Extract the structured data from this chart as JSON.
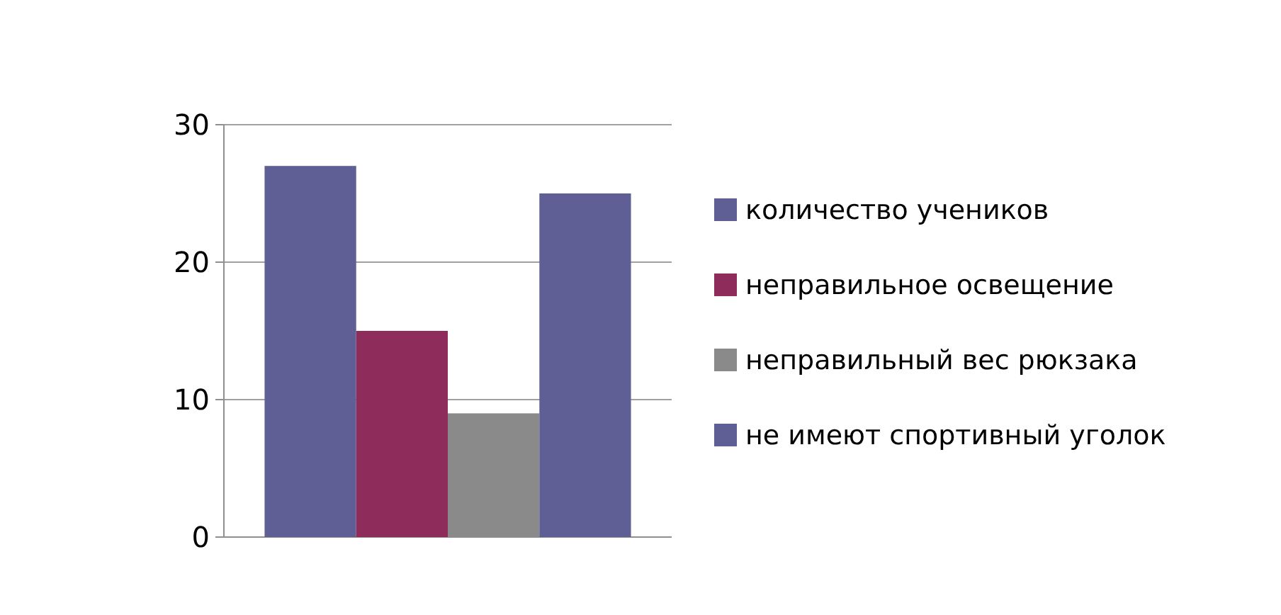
{
  "chart_data": {
    "type": "bar",
    "categories": [
      null
    ],
    "series": [
      {
        "name": "количество учеников",
        "color": "#5f5f96",
        "values": [
          27
        ]
      },
      {
        "name": "неправильное освещение",
        "color": "#8e2d5c",
        "values": [
          15
        ]
      },
      {
        "name": "неправильный вес рюкзака",
        "color": "#8a8a8a",
        "values": [
          9
        ]
      },
      {
        "name": "не имеют спортивный уголок",
        "color": "#5f5f96",
        "values": [
          25
        ]
      }
    ],
    "ylim": [
      0,
      30
    ],
    "yticks": [
      0,
      10,
      20,
      30
    ],
    "grid": "y",
    "legend": "right"
  }
}
